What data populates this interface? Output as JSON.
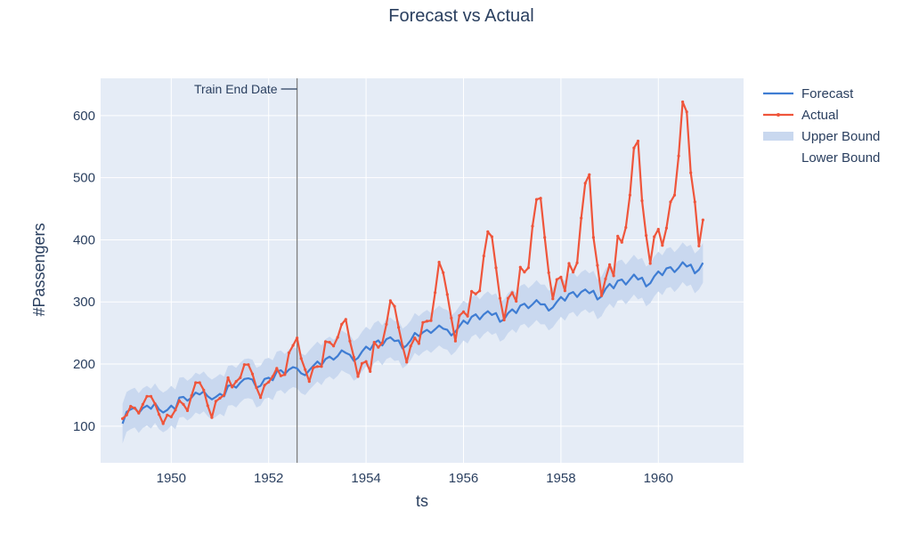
{
  "chart_data": {
    "type": "line",
    "title": "Forecast vs Actual",
    "xlabel": "ts",
    "ylabel": "#Passengers",
    "xlim": [
      1948.55,
      1961.75
    ],
    "ylim": [
      41,
      660
    ],
    "x_ticks": [
      1950,
      1952,
      1954,
      1956,
      1958,
      1960
    ],
    "y_ticks": [
      100,
      200,
      300,
      400,
      500,
      600
    ],
    "x_start": 1949.0,
    "x_step": 0.0833333,
    "grid": true,
    "legend_position": "top-right",
    "annotation": {
      "text": "Train End Date",
      "x": 1952.583
    },
    "colors": {
      "forecast": "#3f7dd3",
      "actual": "#ef553b",
      "band": "#c9d8ef",
      "plot_bg": "#e5ecf6",
      "vline": "#7f7f7f"
    },
    "series": [
      {
        "name": "Actual",
        "values": [
          112,
          118,
          132,
          129,
          121,
          135,
          148,
          148,
          136,
          119,
          104,
          118,
          115,
          126,
          141,
          135,
          125,
          149,
          170,
          170,
          158,
          133,
          114,
          140,
          145,
          150,
          178,
          163,
          172,
          178,
          199,
          199,
          184,
          162,
          146,
          166,
          171,
          180,
          193,
          181,
          183,
          218,
          230,
          242,
          209,
          191,
          172,
          194,
          196,
          196,
          236,
          235,
          229,
          243,
          264,
          272,
          237,
          211,
          180,
          201,
          204,
          188,
          235,
          227,
          234,
          264,
          302,
          293,
          259,
          229,
          203,
          229,
          242,
          233,
          267,
          269,
          270,
          315,
          364,
          347,
          312,
          274,
          237,
          278,
          284,
          277,
          317,
          313,
          318,
          374,
          413,
          405,
          355,
          306,
          271,
          306,
          315,
          301,
          356,
          348,
          355,
          422,
          465,
          467,
          404,
          347,
          305,
          336,
          340,
          318,
          362,
          348,
          363,
          435,
          491,
          505,
          404,
          359,
          310,
          337,
          360,
          342,
          406,
          396,
          420,
          472,
          548,
          559,
          463,
          407,
          362,
          405,
          417,
          391,
          419,
          461,
          472,
          535,
          622,
          606,
          508,
          461,
          390,
          432
        ]
      },
      {
        "name": "Forecast",
        "values": [
          104,
          123,
          127,
          130,
          121,
          129,
          133,
          128,
          137,
          127,
          122,
          126,
          133,
          127,
          146,
          147,
          141,
          146,
          154,
          151,
          156,
          148,
          143,
          147,
          152,
          148,
          165,
          166,
          162,
          170,
          176,
          177,
          175,
          162,
          165,
          176,
          178,
          174,
          188,
          190,
          184,
          191,
          195,
          193,
          185,
          182,
          190,
          197,
          204,
          198,
          208,
          212,
          207,
          213,
          222,
          218,
          215,
          205,
          210,
          220,
          228,
          223,
          234,
          238,
          230,
          240,
          243,
          237,
          238,
          225,
          230,
          238,
          250,
          245,
          251,
          255,
          250,
          256,
          262,
          257,
          255,
          246,
          252,
          261,
          270,
          265,
          276,
          280,
          272,
          280,
          285,
          279,
          282,
          268,
          272,
          282,
          288,
          282,
          294,
          297,
          290,
          296,
          303,
          296,
          296,
          286,
          291,
          300,
          308,
          302,
          313,
          316,
          308,
          316,
          320,
          314,
          318,
          304,
          309,
          321,
          329,
          322,
          334,
          336,
          328,
          336,
          344,
          336,
          339,
          325,
          330,
          341,
          349,
          343,
          354,
          356,
          348,
          355,
          364,
          357,
          360,
          346,
          352,
          363
        ]
      }
    ],
    "band": {
      "upper_name": "Upper Bound",
      "lower_name": "Lower Bound",
      "halfwidth": 32
    },
    "legend": [
      "Forecast",
      "Actual",
      "Upper Bound",
      "Lower Bound"
    ]
  }
}
